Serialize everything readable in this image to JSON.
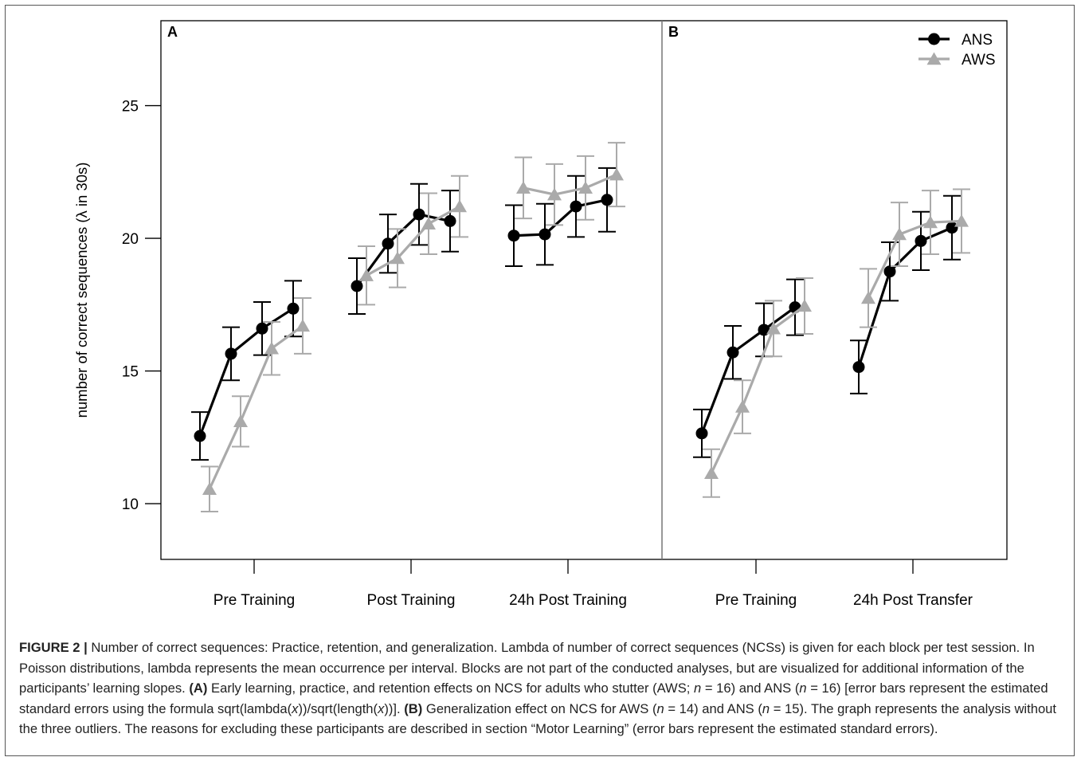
{
  "chart_data": [
    {
      "panel_label": "A",
      "type": "line",
      "ylabel": "number of correct sequences (λ in 30s)",
      "ylim": [
        7.9,
        28.2
      ],
      "yticks": [
        10,
        15,
        20,
        25
      ],
      "categories": [
        "Pre Training",
        "Post Training",
        "24h Post Training"
      ],
      "blocks_per_category": 4,
      "error_bars": true,
      "grid": false,
      "series": [
        {
          "name": "ANS",
          "color": "#000000",
          "marker": "circle",
          "values": [
            [
              12.55,
              15.65,
              16.6,
              17.35
            ],
            [
              18.2,
              19.8,
              20.9,
              20.65
            ],
            [
              20.1,
              20.15,
              21.2,
              21.45
            ]
          ],
          "errors": [
            [
              0.9,
              1.0,
              1.0,
              1.05
            ],
            [
              1.05,
              1.1,
              1.15,
              1.15
            ],
            [
              1.15,
              1.15,
              1.15,
              1.2
            ]
          ]
        },
        {
          "name": "AWS",
          "color": "#aaaaaa",
          "marker": "triangle",
          "values": [
            [
              10.55,
              13.1,
              15.85,
              16.7
            ],
            [
              18.6,
              19.25,
              20.55,
              21.2
            ],
            [
              21.9,
              21.65,
              21.9,
              22.4
            ]
          ],
          "errors": [
            [
              0.85,
              0.95,
              1.0,
              1.05
            ],
            [
              1.1,
              1.1,
              1.15,
              1.15
            ],
            [
              1.15,
              1.15,
              1.2,
              1.2
            ]
          ]
        }
      ]
    },
    {
      "panel_label": "B",
      "type": "line",
      "ylim": [
        7.9,
        28.2
      ],
      "categories": [
        "Pre Training",
        "24h Post Transfer"
      ],
      "blocks_per_category": 4,
      "error_bars": true,
      "grid": false,
      "legend": "top-right",
      "series": [
        {
          "name": "ANS",
          "color": "#000000",
          "marker": "circle",
          "values": [
            [
              12.65,
              15.7,
              16.55,
              17.4
            ],
            [
              15.15,
              18.75,
              19.9,
              20.4
            ]
          ],
          "errors": [
            [
              0.9,
              1.0,
              1.0,
              1.05
            ],
            [
              1.0,
              1.1,
              1.1,
              1.2
            ]
          ]
        },
        {
          "name": "AWS",
          "color": "#aaaaaa",
          "marker": "triangle",
          "values": [
            [
              11.15,
              13.65,
              16.6,
              17.45
            ],
            [
              17.75,
              20.15,
              20.6,
              20.65
            ]
          ],
          "errors": [
            [
              0.9,
              1.0,
              1.05,
              1.05
            ],
            [
              1.1,
              1.2,
              1.2,
              1.2
            ]
          ]
        }
      ]
    }
  ],
  "caption": {
    "s1_bold": "FIGURE 2 |",
    "s2": " Number of correct sequences: Practice, retention, and generalization. Lambda of number of correct sequences (NCSs) is given for each block per test session. In Poisson distributions, lambda represents the mean occurrence per interval. Blocks are not part of the conducted analyses, but are visualized for additional information of the participants’ learning slopes. ",
    "s3_bold": "(A)",
    "s4": " Early learning, practice, and retention effects on NCS for adults who stutter (AWS; ",
    "s5_italic": "n",
    "s6": " = 16) and ANS (",
    "s7_italic": "n",
    "s8": " = 16) [error bars represent the estimated standard errors using the formula sqrt(lambda(",
    "s9_italic": "x",
    "s10": "))/sqrt(length(",
    "s11_italic": "x",
    "s12": "))]. ",
    "s13_bold": "(B)",
    "s14": " Generalization effect on NCS for AWS (",
    "s15_italic": "n",
    "s16": " = 14) and ANS (",
    "s17_italic": "n",
    "s18": " = 15). The graph represents the analysis without the three outliers. The reasons for excluding these participants are described in section “Motor Learning” (error bars represent the estimated standard errors)."
  }
}
